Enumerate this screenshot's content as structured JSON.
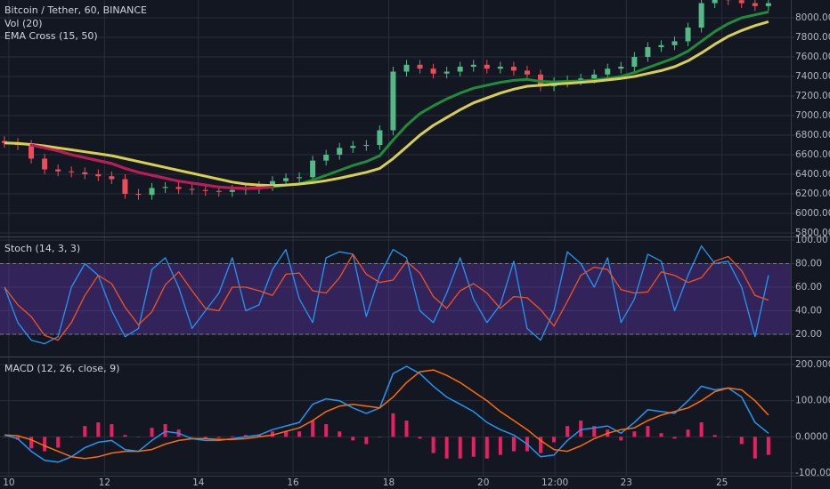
{
  "chart_data": [
    {
      "type": "candlestick",
      "title": "Bitcoin / Tether, 60, BINANCE",
      "subtitles": [
        "Vol (20)",
        "EMA Cross (15, 50)"
      ],
      "up_color": "#53b987",
      "down_color": "#eb4d5c",
      "open": [
        6740,
        6720,
        6700,
        6560,
        6450,
        6430,
        6420,
        6400,
        6380,
        6350,
        6200,
        6190,
        6260,
        6270,
        6250,
        6240,
        6230,
        6220,
        6240,
        6250,
        6280,
        6330,
        6360,
        6370,
        6540,
        6600,
        6670,
        6690,
        6700,
        6850,
        7450,
        7520,
        7480,
        7430,
        7450,
        7500,
        7520,
        7480,
        7500,
        7460,
        7420,
        7300,
        7340,
        7360,
        7380,
        7420,
        7480,
        7500,
        7600,
        7700,
        7720,
        7760,
        7900,
        8150,
        8220,
        8180,
        8150,
        8120
      ],
      "high": [
        6790,
        6770,
        6750,
        6610,
        6500,
        6480,
        6470,
        6450,
        6430,
        6400,
        6250,
        6310,
        6320,
        6320,
        6300,
        6290,
        6280,
        6290,
        6300,
        6330,
        6380,
        6410,
        6420,
        6590,
        6650,
        6720,
        6740,
        6750,
        6900,
        7500,
        7570,
        7570,
        7530,
        7500,
        7550,
        7570,
        7570,
        7550,
        7550,
        7510,
        7470,
        7390,
        7410,
        7430,
        7470,
        7530,
        7550,
        7650,
        7750,
        7770,
        7810,
        7950,
        8200,
        8270,
        8270,
        8230,
        8200,
        8200
      ],
      "low": [
        6670,
        6650,
        6510,
        6400,
        6380,
        6370,
        6350,
        6330,
        6300,
        6150,
        6140,
        6140,
        6210,
        6200,
        6190,
        6180,
        6170,
        6170,
        6190,
        6200,
        6230,
        6280,
        6310,
        6320,
        6490,
        6550,
        6620,
        6640,
        6650,
        6800,
        7400,
        7430,
        7380,
        7380,
        7400,
        7450,
        7430,
        7430,
        7410,
        7370,
        7250,
        7250,
        7290,
        7310,
        7330,
        7370,
        7430,
        7450,
        7550,
        7650,
        7670,
        7710,
        7850,
        8100,
        8130,
        8100,
        8070,
        8070
      ],
      "close": [
        6720,
        6700,
        6560,
        6450,
        6430,
        6420,
        6400,
        6380,
        6350,
        6200,
        6190,
        6260,
        6270,
        6250,
        6240,
        6230,
        6220,
        6240,
        6250,
        6280,
        6330,
        6360,
        6370,
        6540,
        6600,
        6670,
        6690,
        6700,
        6850,
        7450,
        7520,
        7480,
        7430,
        7450,
        7500,
        7520,
        7480,
        7500,
        7460,
        7420,
        7300,
        7340,
        7360,
        7380,
        7420,
        7480,
        7500,
        7600,
        7700,
        7720,
        7760,
        7900,
        8150,
        8220,
        8180,
        8150,
        8120,
        8150
      ],
      "series": [
        {
          "color": "#1e8c3a",
          "cross_color": "#c2185b",
          "values": [
            6720,
            6718,
            6700,
            6670,
            6640,
            6600,
            6570,
            6540,
            6510,
            6460,
            6420,
            6390,
            6360,
            6330,
            6310,
            6290,
            6270,
            6260,
            6255,
            6260,
            6270,
            6290,
            6300,
            6340,
            6390,
            6440,
            6490,
            6530,
            6590,
            6750,
            6900,
            7020,
            7100,
            7170,
            7230,
            7280,
            7310,
            7340,
            7360,
            7370,
            7350,
            7345,
            7350,
            7355,
            7365,
            7380,
            7400,
            7440,
            7490,
            7540,
            7590,
            7660,
            7760,
            7860,
            7940,
            8000,
            8030,
            8060
          ]
        },
        {
          "color": "#d8d04c",
          "values": [
            6720,
            6715,
            6705,
            6690,
            6670,
            6650,
            6630,
            6610,
            6590,
            6560,
            6530,
            6500,
            6470,
            6440,
            6410,
            6380,
            6350,
            6320,
            6300,
            6290,
            6285,
            6290,
            6300,
            6315,
            6335,
            6360,
            6390,
            6420,
            6460,
            6560,
            6680,
            6800,
            6900,
            6980,
            7060,
            7130,
            7180,
            7230,
            7270,
            7300,
            7310,
            7320,
            7330,
            7340,
            7350,
            7365,
            7380,
            7400,
            7430,
            7460,
            7500,
            7560,
            7640,
            7730,
            7810,
            7870,
            7920,
            7960
          ]
        }
      ],
      "ylim": [
        5773,
        8182
      ],
      "yticks": [
        {
          "value": 5800,
          "label": "5800.00"
        },
        {
          "value": 6000,
          "label": "6000.00"
        },
        {
          "value": 6200,
          "label": "6200.00"
        },
        {
          "value": 6400,
          "label": "6400.00"
        },
        {
          "value": 6600,
          "label": "6600.00"
        },
        {
          "value": 6800,
          "label": "6800.00"
        },
        {
          "value": 7000,
          "label": "7000.00"
        },
        {
          "value": 7200,
          "label": "7200.00"
        },
        {
          "value": 7400,
          "label": "7400.00"
        },
        {
          "value": 7600,
          "label": "7600.00"
        },
        {
          "value": 7800,
          "label": "7800.00"
        },
        {
          "value": 8000,
          "label": "8000.00"
        }
      ],
      "grid": true
    },
    {
      "type": "line",
      "title": "Stoch (14, 3, 3)",
      "band": [
        20,
        80
      ],
      "band_color": "rgba(103,58,183,0.38)",
      "series": [
        {
          "color": "#2196f3",
          "values": [
            60,
            30,
            15,
            12,
            18,
            60,
            80,
            70,
            40,
            18,
            25,
            75,
            85,
            60,
            25,
            40,
            55,
            85,
            40,
            45,
            75,
            92,
            50,
            30,
            85,
            90,
            88,
            35,
            70,
            92,
            85,
            40,
            30,
            55,
            85,
            50,
            30,
            45,
            82,
            25,
            15,
            40,
            90,
            80,
            60,
            85,
            30,
            50,
            88,
            82,
            40,
            70,
            95,
            80,
            82,
            60,
            18,
            70
          ]
        },
        {
          "color": "#f4511e",
          "values": [
            60,
            45,
            35,
            19,
            15,
            30,
            53,
            70,
            63,
            43,
            28,
            39,
            62,
            73,
            57,
            42,
            40,
            60,
            60,
            57,
            53,
            71,
            72,
            57,
            55,
            68,
            88,
            71,
            64,
            66,
            82,
            72,
            52,
            42,
            57,
            63,
            55,
            42,
            52,
            51,
            41,
            27,
            48,
            70,
            77,
            75,
            58,
            55,
            56,
            73,
            70,
            64,
            68,
            82,
            86,
            74,
            53,
            49
          ]
        }
      ],
      "ylim": [
        1.9,
        101.5
      ],
      "yticks": [
        {
          "value": 20,
          "label": "20.00"
        },
        {
          "value": 40,
          "label": "40.00"
        },
        {
          "value": 60,
          "label": "60.00"
        },
        {
          "value": 80,
          "label": "80.00"
        },
        {
          "value": 100,
          "label": "100.00"
        }
      ],
      "grid": true
    },
    {
      "type": "macd",
      "title": "MACD (12, 26, close, 9)",
      "histogram": {
        "color": "#e91e63",
        "values": [
          0,
          -8,
          -32,
          -40,
          -30,
          0,
          30,
          40,
          35,
          5,
          0,
          25,
          35,
          20,
          0,
          -5,
          -3,
          2,
          5,
          5,
          15,
          15,
          15,
          45,
          35,
          15,
          -10,
          -20,
          0,
          65,
          45,
          -5,
          -45,
          -60,
          -60,
          -55,
          -60,
          -50,
          -40,
          -40,
          -45,
          -15,
          30,
          45,
          30,
          20,
          -10,
          15,
          30,
          10,
          -5,
          20,
          40,
          5,
          0,
          -20,
          -60,
          -50
        ]
      },
      "series": [
        {
          "color": "#2196f3",
          "values": [
            5,
            -5,
            -40,
            -65,
            -70,
            -55,
            -30,
            -15,
            -10,
            -35,
            -40,
            -10,
            15,
            10,
            -5,
            -10,
            -10,
            -5,
            0,
            5,
            20,
            30,
            40,
            90,
            105,
            100,
            80,
            65,
            80,
            175,
            195,
            175,
            140,
            110,
            90,
            70,
            40,
            20,
            5,
            -20,
            -55,
            -50,
            -10,
            20,
            25,
            30,
            10,
            40,
            75,
            70,
            65,
            100,
            140,
            130,
            135,
            110,
            40,
            10
          ]
        },
        {
          "color": "#ff6d00",
          "values": [
            5,
            3,
            -8,
            -25,
            -40,
            -55,
            -60,
            -55,
            -45,
            -40,
            -40,
            -35,
            -20,
            -10,
            -5,
            -5,
            -7,
            -7,
            -5,
            0,
            5,
            15,
            25,
            45,
            70,
            85,
            90,
            85,
            80,
            110,
            150,
            180,
            185,
            170,
            150,
            125,
            100,
            70,
            45,
            20,
            -10,
            -35,
            -40,
            -25,
            -5,
            10,
            20,
            25,
            45,
            60,
            70,
            80,
            100,
            125,
            135,
            130,
            100,
            60
          ]
        }
      ],
      "ylim": [
        -107.4,
        217.2
      ],
      "yticks": [
        {
          "value": -100,
          "label": "-100.0000"
        },
        {
          "value": 0,
          "label": "0.0000"
        },
        {
          "value": 100,
          "label": "100.0000"
        },
        {
          "value": 200,
          "label": "200.0000"
        }
      ],
      "xlim": [
        -0.33,
        58.67
      ],
      "xticks": [
        {
          "value": 0.33,
          "label": "10"
        },
        {
          "value": 7.47,
          "label": "12"
        },
        {
          "value": 14.47,
          "label": "14"
        },
        {
          "value": 21.53,
          "label": "16"
        },
        {
          "value": 28.67,
          "label": "18"
        },
        {
          "value": 35.73,
          "label": "20"
        },
        {
          "value": 41.07,
          "label": "12:00"
        },
        {
          "value": 46.4,
          "label": "23"
        },
        {
          "value": 53.53,
          "label": "25"
        }
      ],
      "grid": true
    }
  ]
}
